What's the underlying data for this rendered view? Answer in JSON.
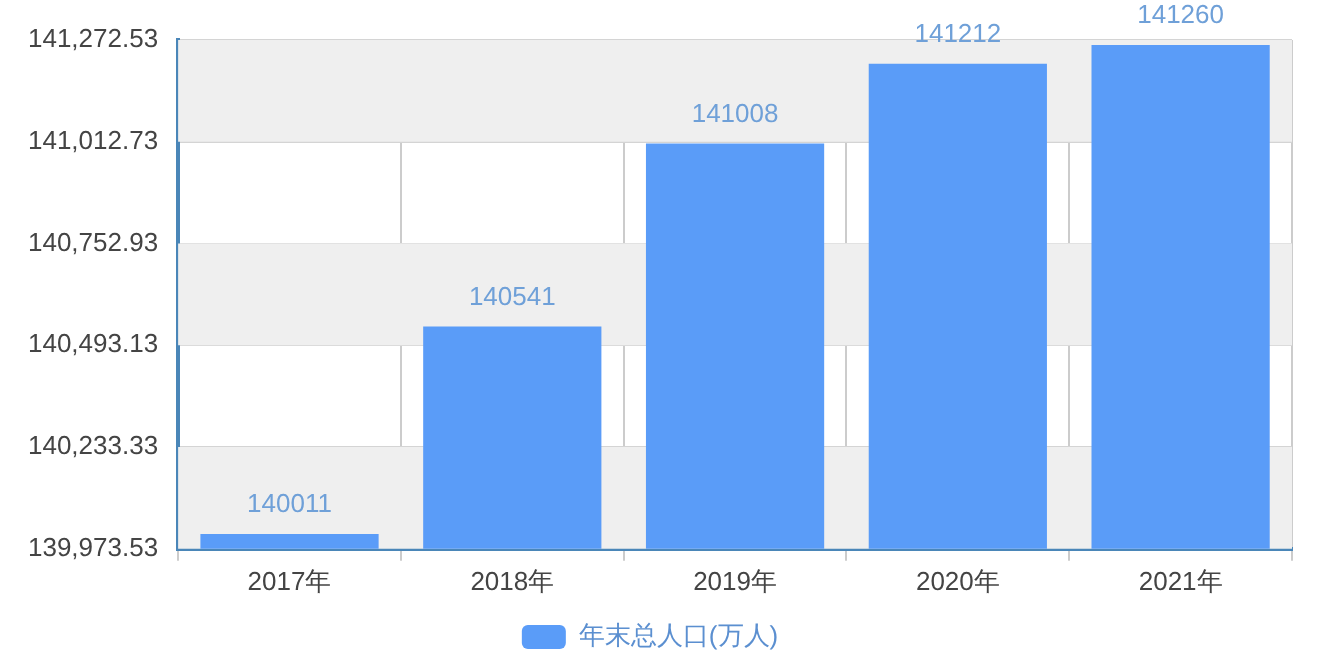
{
  "chart_data": {
    "type": "bar",
    "categories": [
      "2017年",
      "2018年",
      "2019年",
      "2020年",
      "2021年"
    ],
    "series": [
      {
        "name": "年末总人口(万人)",
        "color": "#5a9cf8",
        "values": [
          140011,
          140541,
          141008,
          141212,
          141260
        ]
      }
    ],
    "ylim": [
      139973.53,
      141272.53
    ],
    "yticks": [
      {
        "value": 139973.53,
        "label": "139,973.53"
      },
      {
        "value": 140233.33,
        "label": "140,233.33"
      },
      {
        "value": 140493.13,
        "label": "140,493.13"
      },
      {
        "value": 140752.93,
        "label": "140,752.93"
      },
      {
        "value": 141012.73,
        "label": "141,012.73"
      },
      {
        "value": 141272.53,
        "label": "141,272.53"
      }
    ],
    "grid": true,
    "legend": "bottom",
    "data_labels": true
  }
}
